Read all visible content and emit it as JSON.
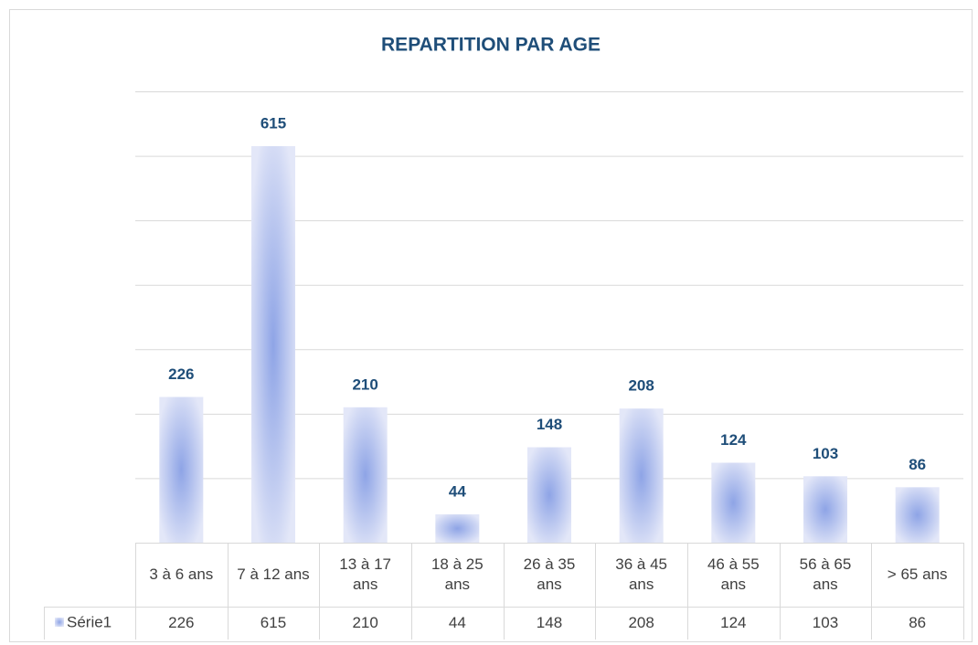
{
  "chart_data": {
    "type": "bar",
    "title": "REPARTITION PAR AGE",
    "categories": [
      "3 à 6 ans",
      "7 à 12 ans",
      "13 à 17 ans",
      "18 à 25 ans",
      "26 à 35 ans",
      "36 à 45 ans",
      "46 à 55 ans",
      "56 à 65 ans",
      "> 65 ans"
    ],
    "series": [
      {
        "name": "Série1",
        "color": "#8ea4e6",
        "values": [
          226,
          615,
          210,
          44,
          148,
          208,
          124,
          103,
          86
        ]
      }
    ],
    "ylim": [
      0,
      700
    ],
    "yticks": [
      0,
      100,
      200,
      300,
      400,
      500,
      600,
      700
    ],
    "grid": true,
    "data_table": true
  }
}
